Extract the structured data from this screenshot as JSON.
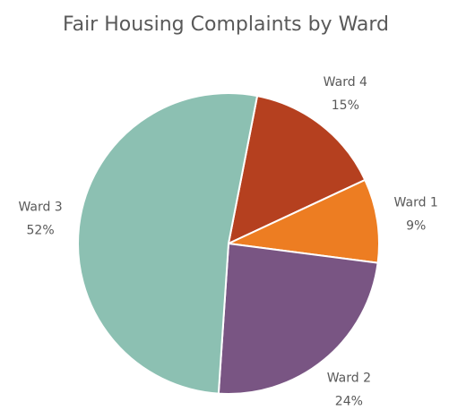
{
  "chart_data": {
    "type": "pie",
    "title": "Fair Housing Complaints by Ward",
    "categories": [
      "Ward 4",
      "Ward 1",
      "Ward 2",
      "Ward 3"
    ],
    "values": [
      15,
      9,
      24,
      52
    ],
    "value_labels": [
      "15%",
      "9%",
      "24%",
      "52%"
    ],
    "colors": [
      "#b5401f",
      "#ed7d22",
      "#795583",
      "#8cc0b2"
    ]
  }
}
